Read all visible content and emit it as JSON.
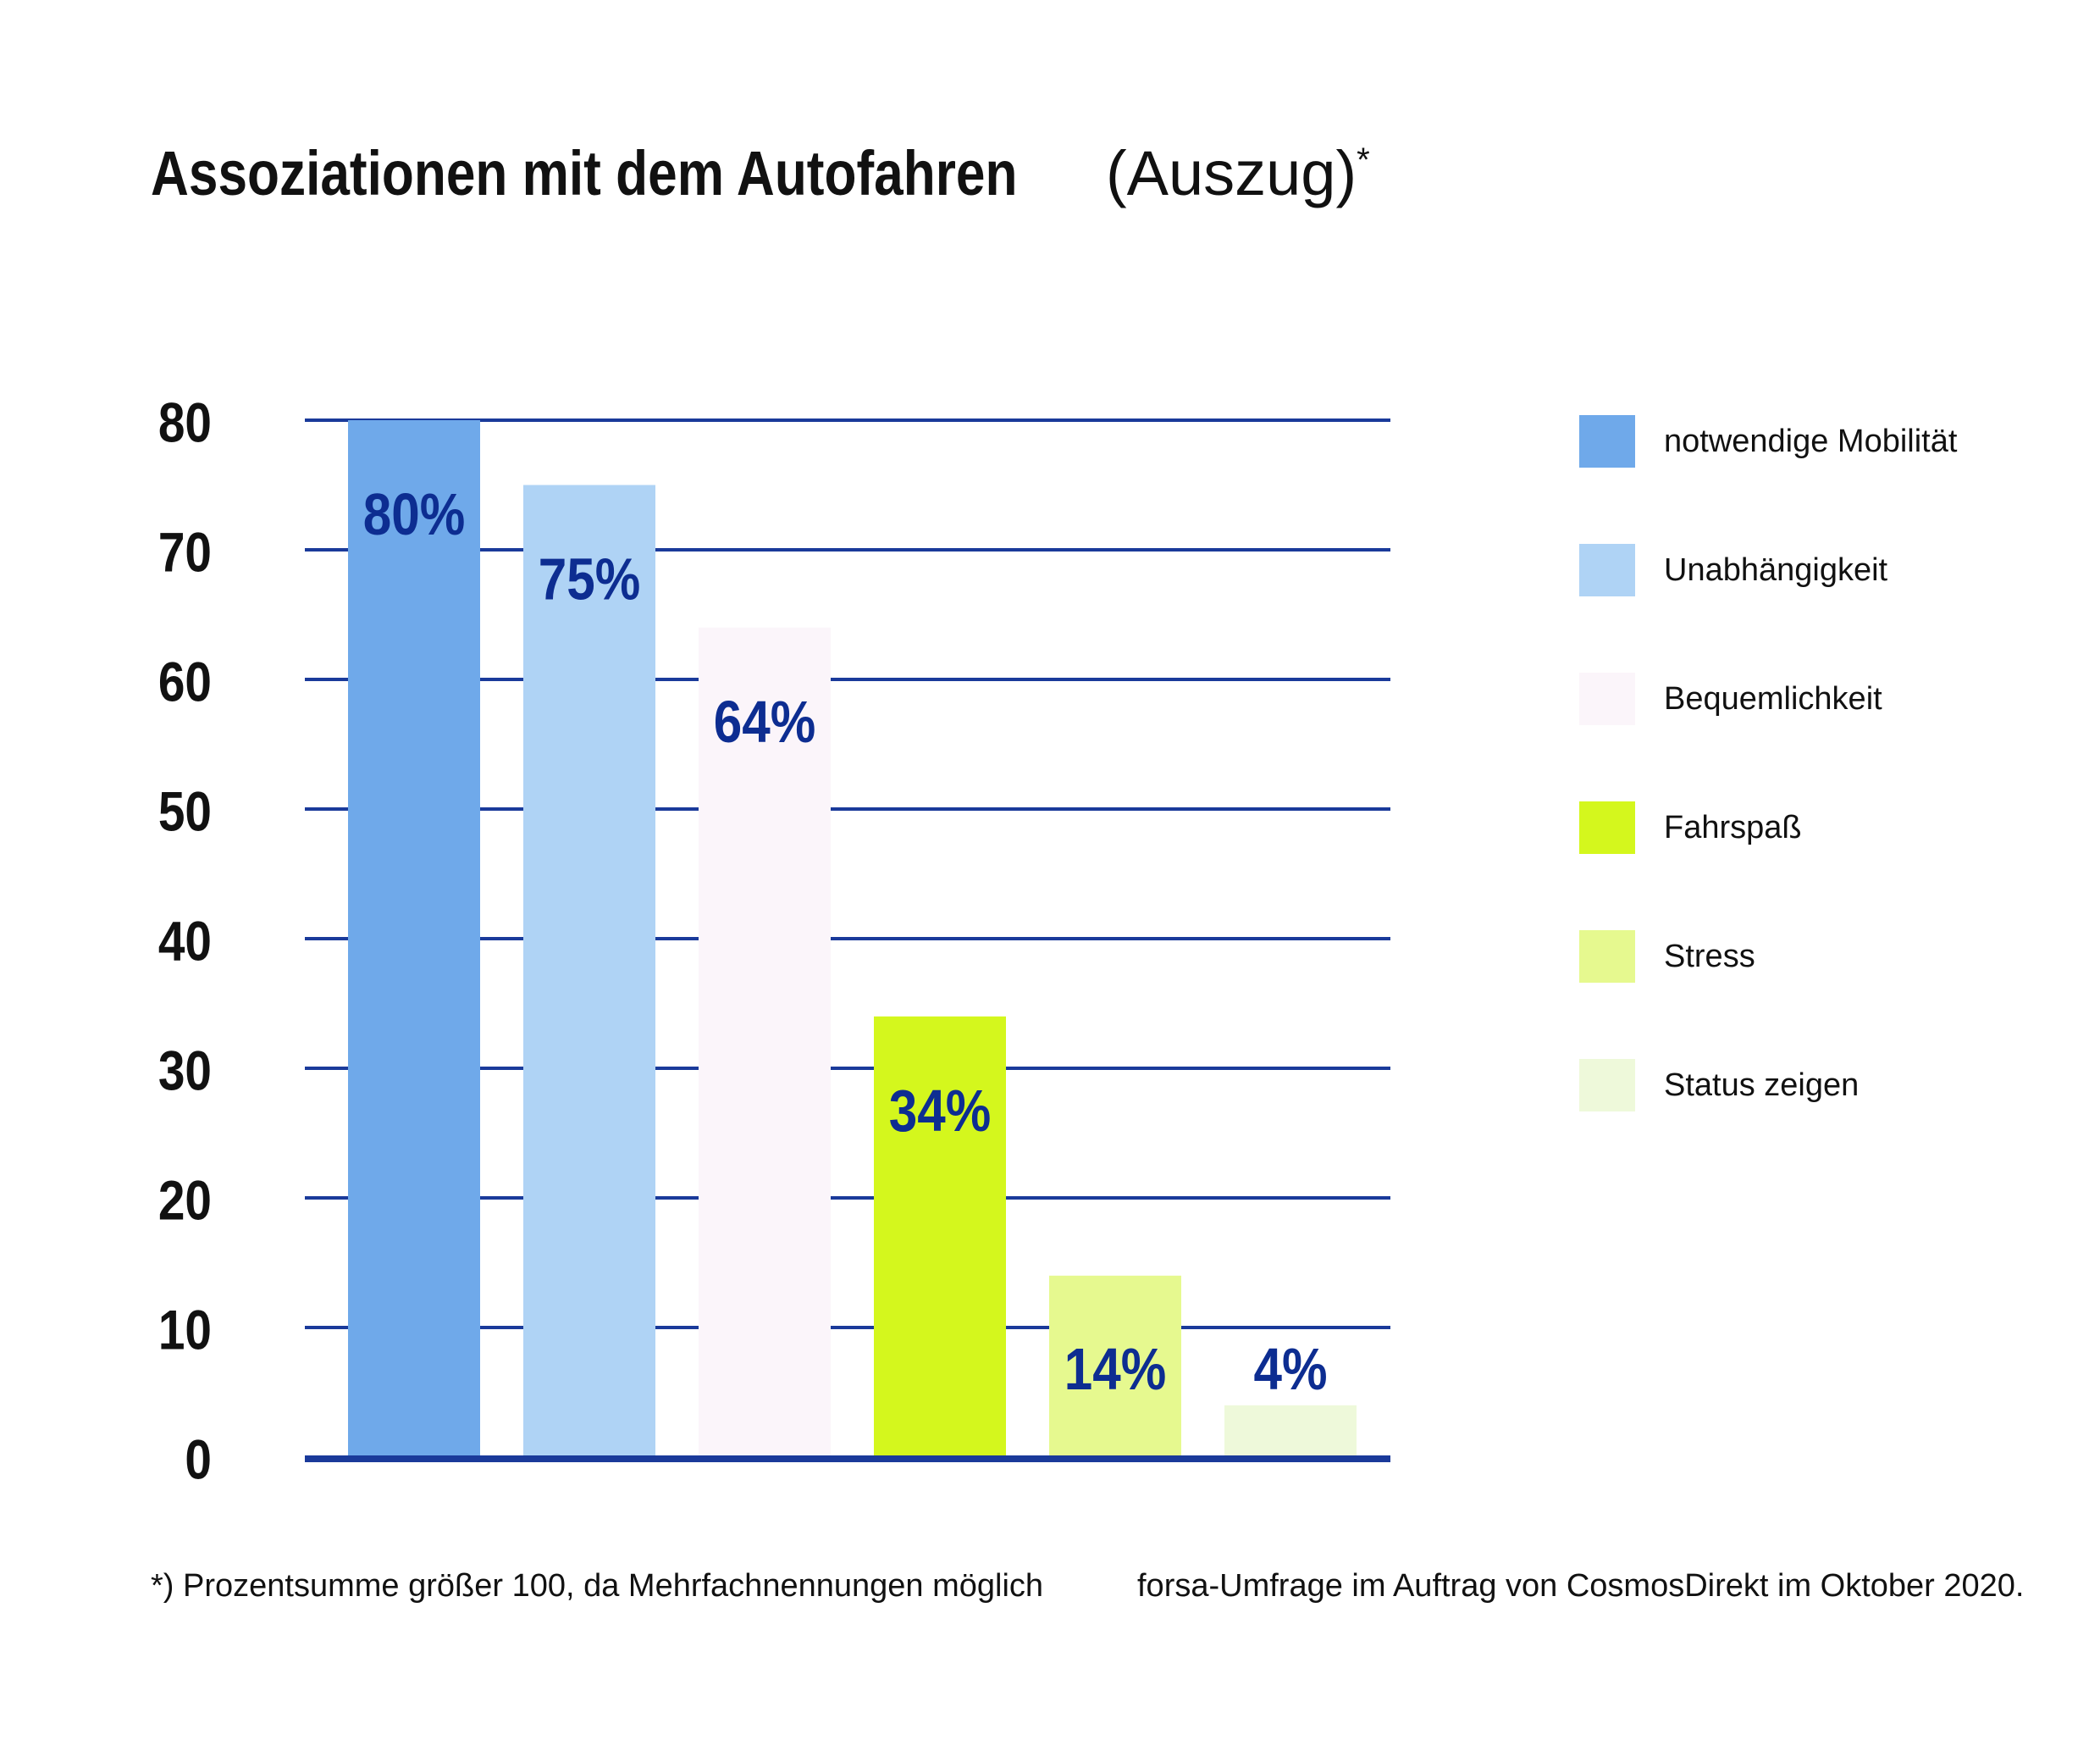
{
  "title": {
    "main": "Assoziationen mit dem Autofahren",
    "suffix": "(Auszug)",
    "marker": "*"
  },
  "footnotes": {
    "left": "*) Prozentsumme größer 100, da Mehrfachnennungen möglich",
    "right": "forsa-Umfrage im Auftrag von CosmosDirekt im Oktober 2020."
  },
  "colors": {
    "gridline": "#1a3a9a",
    "axis": "#1a3a9a",
    "value_label": "#0d2d91",
    "tick_label": "#111111"
  },
  "chart_data": {
    "type": "bar",
    "title": "Assoziationen mit dem Autofahren (Auszug)*",
    "xlabel": "",
    "ylabel": "",
    "ylim": [
      0,
      80
    ],
    "yticks": [
      0,
      10,
      20,
      30,
      40,
      50,
      60,
      70,
      80
    ],
    "grid": true,
    "legend_position": "right",
    "categories": [
      "notwendige Mobilität",
      "Unabhängigkeit",
      "Bequemlichkeit",
      "Fahrspaß",
      "Stress",
      "Status zeigen"
    ],
    "values": [
      80,
      75,
      64,
      34,
      14,
      4
    ],
    "value_labels": [
      "80%",
      "75%",
      "64%",
      "34%",
      "14%",
      "4%"
    ],
    "bar_colors": [
      "#6fa9ea",
      "#afd3f5",
      "#fbf5fa",
      "#d4f71d",
      "#e6f98f",
      "#eef9da"
    ]
  }
}
